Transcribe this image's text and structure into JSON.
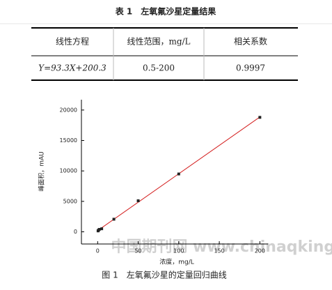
{
  "header": {
    "title": "表 1　左氧氟沙星定量结果"
  },
  "table": {
    "columns": [
      "线性方程",
      "线性范围，mg/L",
      "相关系数"
    ],
    "rows": [
      [
        "Y=93.3X+200.3",
        "0.5-200",
        "0.9997"
      ]
    ]
  },
  "chart_data": {
    "type": "scatter",
    "x_label": "浓度，mg/L",
    "y_label": "峰面积，mAU",
    "x": [
      0.5,
      1,
      2,
      5,
      20,
      50,
      100,
      200
    ],
    "values": [
      150,
      250,
      400,
      500,
      2070,
      5100,
      9500,
      18800
    ],
    "color": "#222222",
    "fit_line": {
      "x": [
        0,
        200
      ],
      "values": [
        200,
        18860
      ],
      "color": "#d42020"
    },
    "xlim": [
      -20,
      210
    ],
    "ylim": [
      -2000,
      21700
    ],
    "xticks": [
      0,
      50,
      100,
      150,
      200
    ],
    "yticks": [
      0,
      5000,
      10000,
      15000,
      20000
    ]
  },
  "caption": "图 1　左氧氟沙星的定量回归曲线",
  "watermark": "中国期刊网 www.chinaqking.com"
}
